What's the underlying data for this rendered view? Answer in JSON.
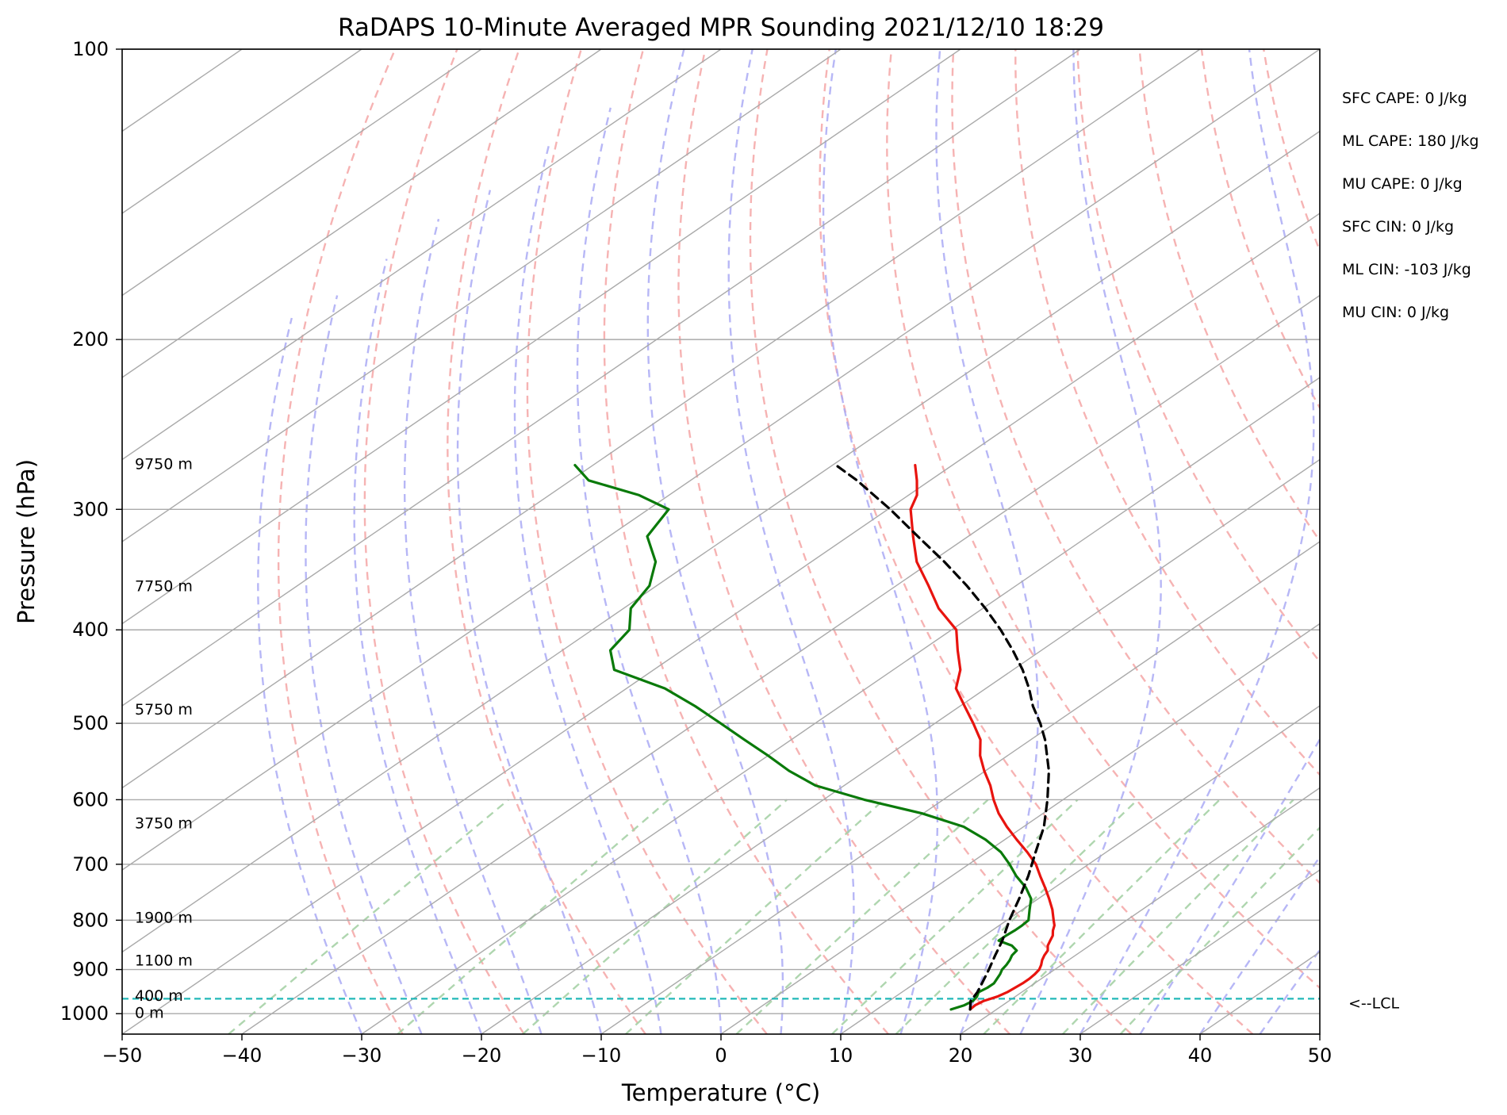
{
  "chart_data": {
    "type": "line",
    "title": "RaDAPS 10-Minute Averaged MPR Sounding 2021/12/10 18:29",
    "xlabel": "Temperature (°C)",
    "ylabel": "Pressure (hPa)",
    "xlim": [
      -50,
      50
    ],
    "ylim": [
      1050,
      100
    ],
    "y_scale": "log",
    "x_ticks": [
      -50,
      -40,
      -30,
      -20,
      -10,
      0,
      10,
      20,
      30,
      40,
      50
    ],
    "x_tick_labels": [
      "−50",
      "−40",
      "−30",
      "−20",
      "−10",
      "0",
      "10",
      "20",
      "30",
      "40",
      "50"
    ],
    "y_ticks": [
      100,
      200,
      300,
      400,
      500,
      600,
      700,
      800,
      900,
      1000
    ],
    "y_tick_labels": [
      "100",
      "200",
      "300",
      "400",
      "500",
      "600",
      "700",
      "800",
      "900",
      "1000"
    ],
    "grid": true,
    "colors": {
      "temperature": "#e8140f",
      "dewpoint": "#0a7a0a",
      "parcel": "#000000",
      "lcl": "#22b8b8",
      "isotherm": "#aaaaaa",
      "dry_adiabat": "#f4a6a6",
      "moist_adiabat": "#aaaaf4",
      "mixing_ratio": "#a6d1a6"
    },
    "series": [
      {
        "key": "temperature",
        "pressure": [
          990,
          980,
          970,
          960,
          950,
          940,
          930,
          920,
          910,
          900,
          890,
          880,
          870,
          860,
          850,
          840,
          830,
          820,
          810,
          800,
          780,
          760,
          740,
          720,
          700,
          680,
          660,
          640,
          620,
          600,
          580,
          560,
          540,
          520,
          500,
          480,
          460,
          440,
          420,
          400,
          380,
          360,
          340,
          320,
          300,
          290,
          280,
          270
        ],
        "values": [
          17.8,
          17.7,
          17.9,
          18.5,
          18.8,
          18.9,
          19.0,
          19.0,
          18.9,
          18.7,
          18.3,
          17.8,
          17.4,
          17.1,
          16.5,
          16.1,
          15.7,
          15.1,
          14.6,
          13.9,
          12.5,
          10.9,
          9.2,
          7.4,
          5.6,
          3.4,
          1.0,
          -1.4,
          -3.7,
          -5.8,
          -7.8,
          -10.1,
          -12.3,
          -14.2,
          -16.8,
          -19.6,
          -22.5,
          -24.4,
          -27.0,
          -29.6,
          -33.7,
          -37.3,
          -41.2,
          -44.6,
          -48.1,
          -49.3,
          -51.1,
          -53.1
        ]
      },
      {
        "key": "dewpoint",
        "pressure": [
          990,
          980,
          970,
          960,
          950,
          940,
          930,
          920,
          910,
          900,
          890,
          880,
          870,
          860,
          850,
          840,
          830,
          820,
          810,
          800,
          780,
          760,
          740,
          720,
          700,
          680,
          660,
          640,
          620,
          600,
          580,
          560,
          540,
          520,
          500,
          480,
          460,
          440,
          420,
          400,
          380,
          360,
          340,
          320,
          300,
          290,
          280,
          270
        ],
        "values": [
          16.2,
          16.8,
          17.0,
          16.8,
          16.4,
          16.6,
          16.6,
          16.3,
          16.0,
          15.6,
          15.4,
          15.1,
          14.7,
          14.5,
          13.5,
          11.8,
          11.8,
          11.9,
          11.9,
          11.8,
          10.6,
          9.4,
          7.6,
          5.4,
          3.4,
          1.2,
          -1.6,
          -5.0,
          -10.1,
          -16.6,
          -22.4,
          -26.4,
          -30.0,
          -33.9,
          -37.9,
          -42.1,
          -46.8,
          -53.3,
          -56.0,
          -56.9,
          -59.4,
          -60.6,
          -63.0,
          -66.8,
          -68.3,
          -72.5,
          -78.5,
          -81.5
        ]
      },
      {
        "key": "parcel",
        "pressure": [
          990,
          970,
          950,
          930,
          900,
          870,
          840,
          800,
          760,
          720,
          680,
          640,
          600,
          560,
          520,
          500,
          480,
          460,
          440,
          420,
          400,
          380,
          360,
          340,
          320,
          300,
          280,
          270
        ],
        "values": [
          17.8,
          16.8,
          16.3,
          15.6,
          14.5,
          13.3,
          12.1,
          10.2,
          8.4,
          6.4,
          4.1,
          1.7,
          -1.3,
          -4.7,
          -8.8,
          -11.2,
          -13.9,
          -16.4,
          -19.2,
          -22.4,
          -25.9,
          -29.8,
          -34.1,
          -38.9,
          -44.2,
          -49.8,
          -56.1,
          -59.7
        ]
      }
    ],
    "lcl_pressure": 965,
    "lcl_label": "<--LCL",
    "height_labels": [
      {
        "text": "9750 m",
        "pressure": 269
      },
      {
        "text": "7750 m",
        "pressure": 360
      },
      {
        "text": "5750 m",
        "pressure": 483
      },
      {
        "text": "3750 m",
        "pressure": 634
      },
      {
        "text": "1900 m",
        "pressure": 794
      },
      {
        "text": "1100 m",
        "pressure": 880
      },
      {
        "text": "400 m",
        "pressure": 957
      },
      {
        "text": "0 m",
        "pressure": 997
      }
    ],
    "indices": [
      "SFC CAPE: 0 J/kg",
      "ML CAPE: 180 J/kg",
      "MU CAPE: 0 J/kg",
      "SFC CIN: 0 J/kg",
      "ML CIN: -103 J/kg",
      "MU CIN: 0 J/kg"
    ]
  }
}
